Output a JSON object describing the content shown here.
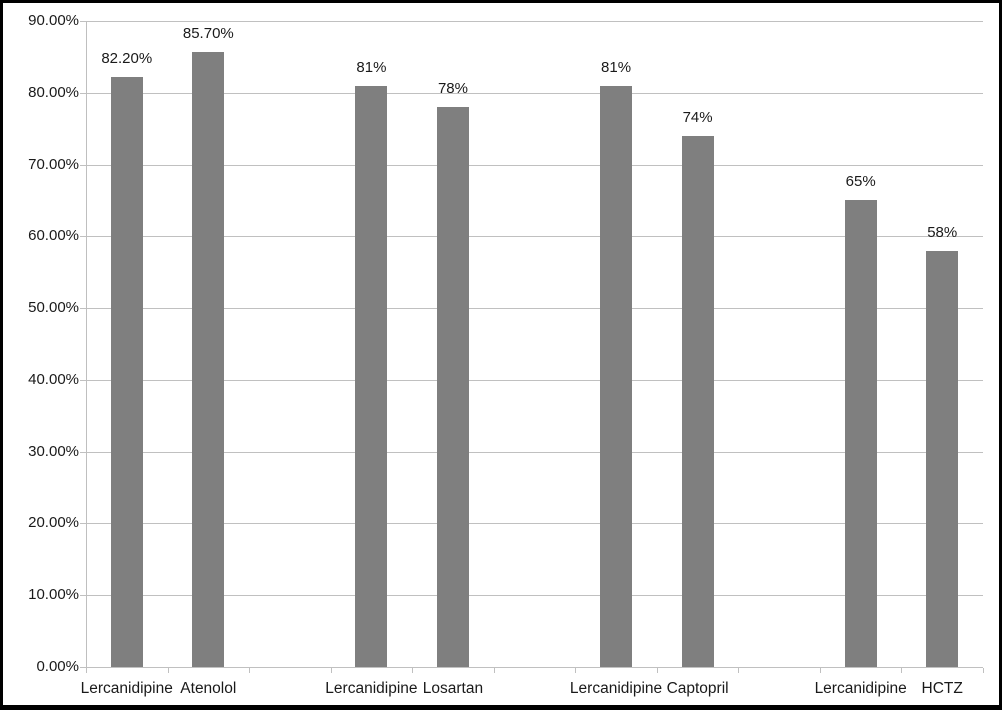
{
  "chart_data": {
    "type": "bar",
    "title": "",
    "xlabel": "",
    "ylabel": "",
    "ylim": [
      0,
      90
    ],
    "ytick_step": 10,
    "ytick_labels": [
      "0.00%",
      "10.00%",
      "20.00%",
      "30.00%",
      "40.00%",
      "50.00%",
      "60.00%",
      "70.00%",
      "80.00%",
      "90.00%"
    ],
    "grid": true,
    "legend": "none",
    "categories": [
      "Lercanidipine",
      "Atenolol",
      "Lercanidipine",
      "Losartan",
      "Lercanidipine",
      "Captopril",
      "Lercanidipine",
      "HCTZ"
    ],
    "values": [
      82.2,
      85.7,
      81,
      78,
      81,
      74,
      65,
      58
    ],
    "value_labels": [
      "82.20%",
      "85.70%",
      "81%",
      "78%",
      "81%",
      "74%",
      "65%",
      "58%"
    ],
    "group_size": 2,
    "groups": [
      {
        "pair": [
          "Lercanidipine",
          "Atenolol"
        ],
        "values": [
          82.2,
          85.7
        ],
        "value_labels": [
          "82.20%",
          "85.70%"
        ]
      },
      {
        "pair": [
          "Lercanidipine",
          "Losartan"
        ],
        "values": [
          81,
          78
        ],
        "value_labels": [
          "81%",
          "78%"
        ]
      },
      {
        "pair": [
          "Lercanidipine",
          "Captopril"
        ],
        "values": [
          81,
          74
        ],
        "value_labels": [
          "81%",
          "74%"
        ]
      },
      {
        "pair": [
          "Lercanidipine",
          "HCTZ"
        ],
        "values": [
          65,
          58
        ],
        "value_labels": [
          "65%",
          "58%"
        ]
      }
    ],
    "colors": {
      "bar": "#7f7f7f",
      "gridline": "#c0c0c0",
      "axis_line": "#bfbfbf",
      "text": "#1a1a1a",
      "frame_border": "#000000",
      "background": "#ffffff"
    }
  }
}
